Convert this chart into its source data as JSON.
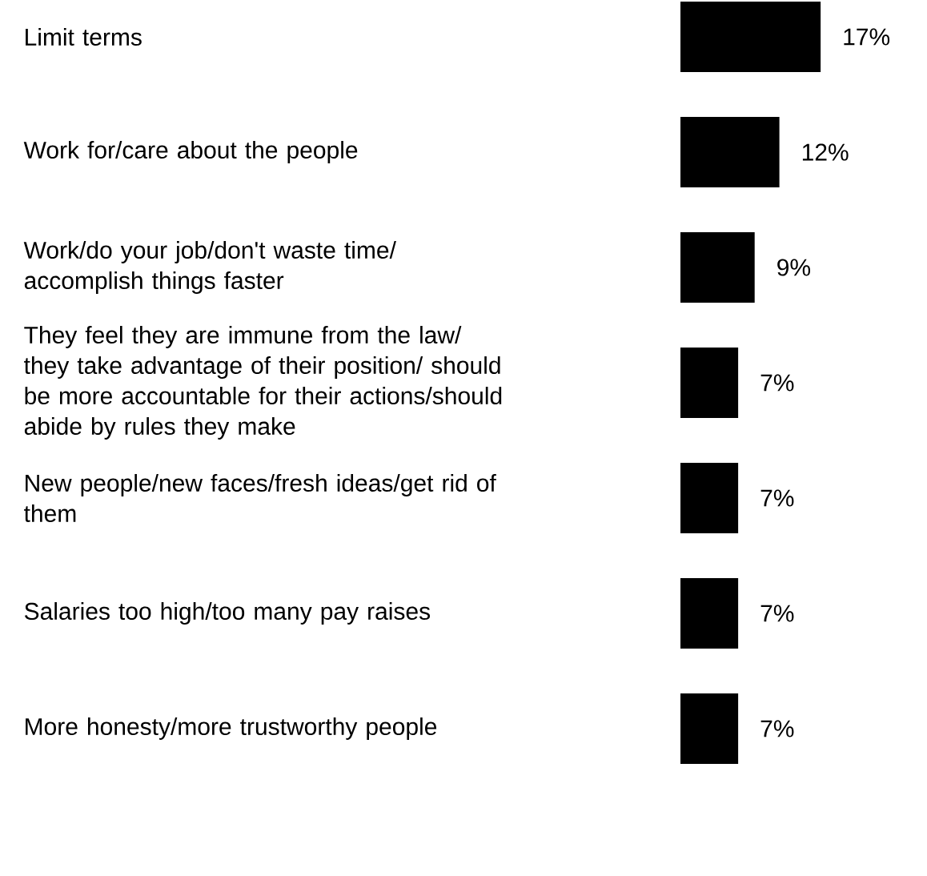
{
  "chart_data": {
    "type": "bar",
    "orientation": "horizontal",
    "categories": [
      "Limit terms",
      "Work for/care about the people",
      "Work/do your job/don't waste time/ accomplish things faster",
      "They feel they are immune from the law/ they take advantage of their position/ should be more accountable for their actions/should abide by rules they make",
      "New people/new faces/fresh ideas/get rid of them",
      "Salaries too high/too many pay raises",
      "More honesty/more trustworthy people"
    ],
    "values": [
      17,
      12,
      9,
      7,
      7,
      7,
      7
    ],
    "value_labels": [
      "17%",
      "12%",
      "9%",
      "7%",
      "7%",
      "7%",
      "7%"
    ],
    "color": "#000000",
    "tick_labels": "y"
  }
}
